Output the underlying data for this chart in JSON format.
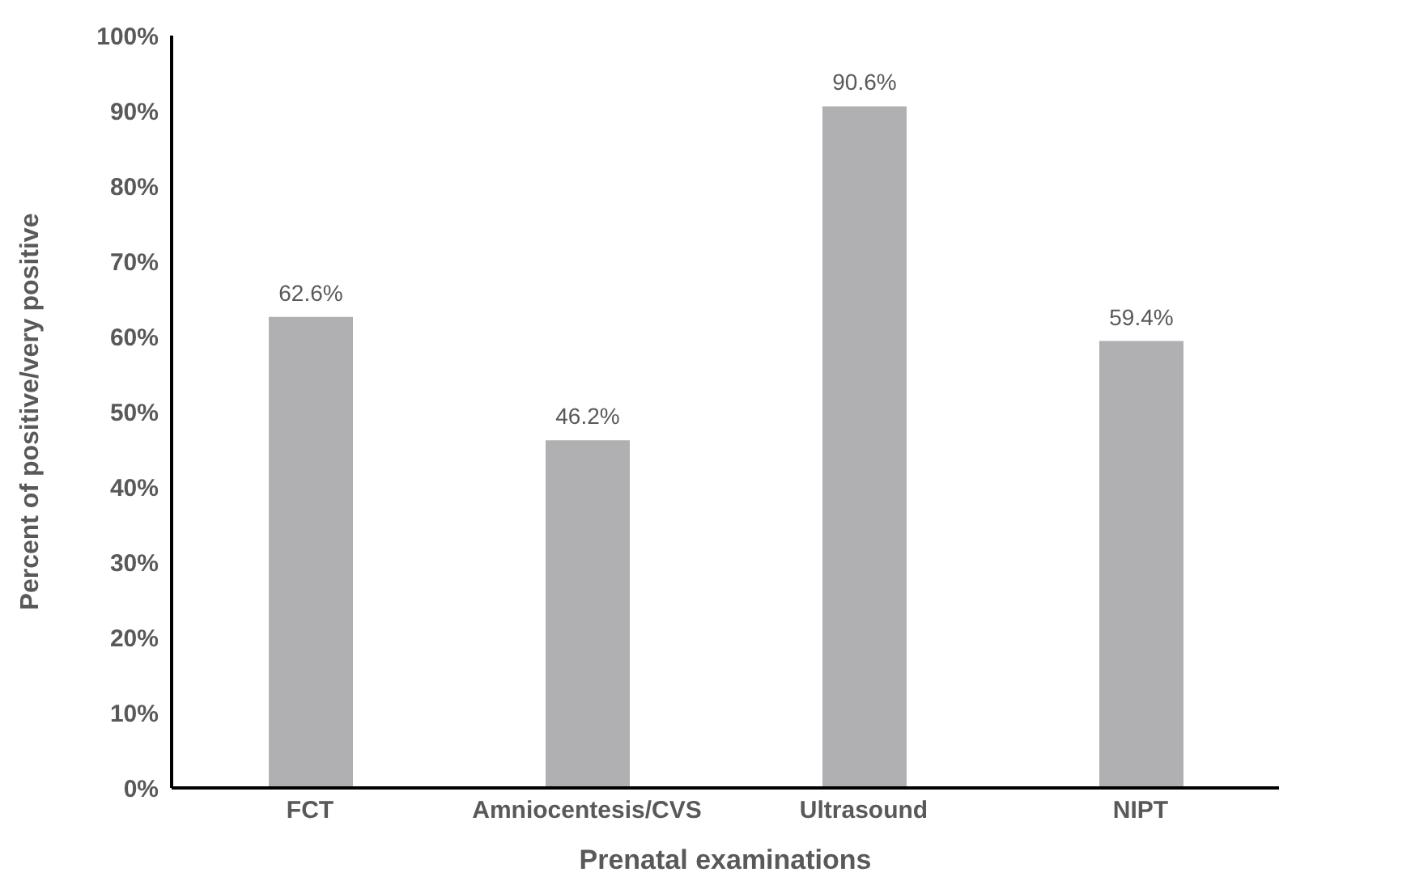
{
  "chart_data": {
    "type": "bar",
    "xlabel": "Prenatal examinations",
    "ylabel": "Percent of positive/very positive",
    "categories": [
      "FCT",
      "Amniocentesis/CVS",
      "Ultrasound",
      "NIPT"
    ],
    "values": [
      62.6,
      46.2,
      90.6,
      59.4
    ],
    "value_labels": [
      "62.6%",
      "46.2%",
      "90.6%",
      "59.4%"
    ],
    "color": "#b0b0b3",
    "ylim": [
      0,
      100
    ],
    "yticks": [
      {
        "value": 0,
        "label": "0%"
      },
      {
        "value": 10,
        "label": "10%"
      },
      {
        "value": 20,
        "label": "20%"
      },
      {
        "value": 30,
        "label": "30%"
      },
      {
        "value": 40,
        "label": "40%"
      },
      {
        "value": 50,
        "label": "50%"
      },
      {
        "value": 60,
        "label": "60%"
      },
      {
        "value": 70,
        "label": "70%"
      },
      {
        "value": 80,
        "label": "80%"
      },
      {
        "value": 90,
        "label": "90%"
      },
      {
        "value": 100,
        "label": "100%"
      }
    ]
  }
}
